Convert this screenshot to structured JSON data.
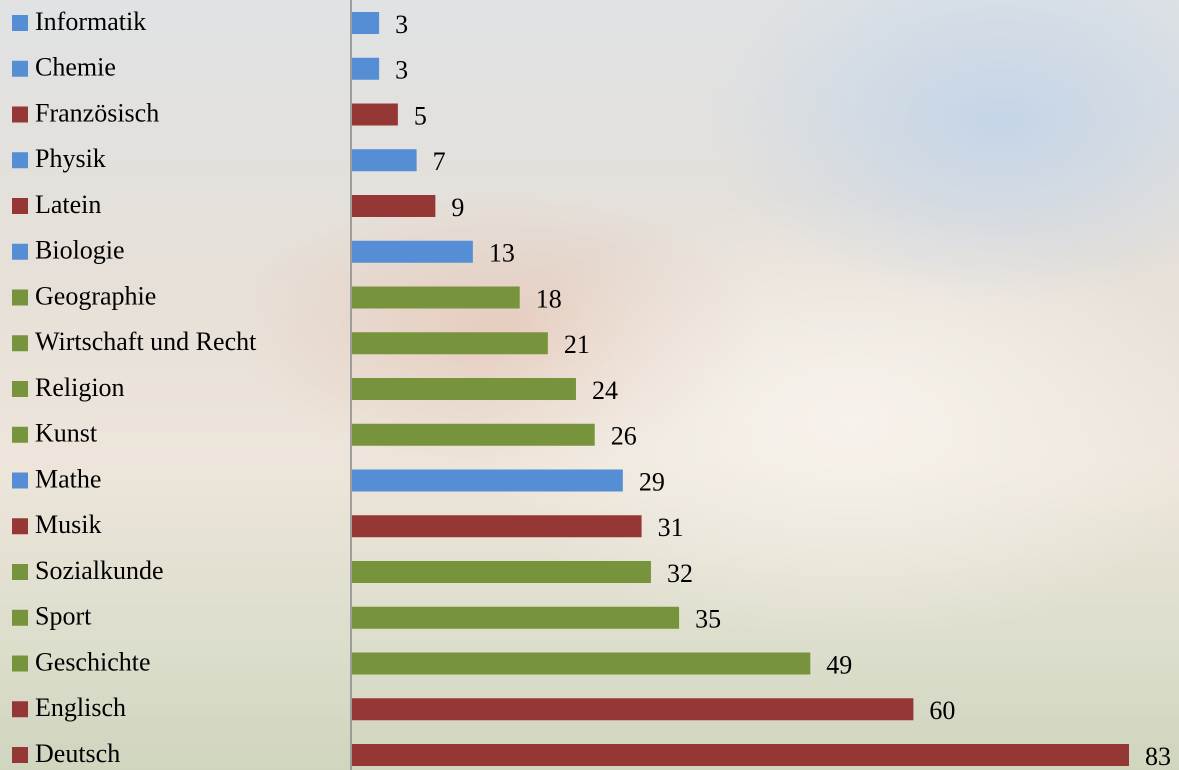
{
  "chart_data": {
    "type": "bar",
    "orientation": "horizontal",
    "categories": [
      "Informatik",
      "Chemie",
      "Französisch",
      "Physik",
      "Latein",
      "Biologie",
      "Geographie",
      "Wirtschaft und Recht",
      "Religion",
      "Kunst",
      "Mathe",
      "Musik",
      "Sozialkunde",
      "Sport",
      "Geschichte",
      "Englisch",
      "Deutsch"
    ],
    "values": [
      3,
      3,
      5,
      7,
      9,
      13,
      18,
      21,
      24,
      26,
      29,
      31,
      32,
      35,
      49,
      60,
      83
    ],
    "colors": [
      "#558ed5",
      "#558ed5",
      "#953735",
      "#558ed5",
      "#953735",
      "#558ed5",
      "#77933c",
      "#77933c",
      "#77933c",
      "#77933c",
      "#558ed5",
      "#953735",
      "#77933c",
      "#77933c",
      "#77933c",
      "#953735",
      "#953735"
    ]
  }
}
